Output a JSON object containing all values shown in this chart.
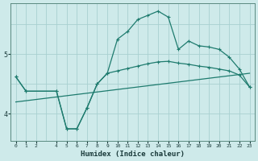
{
  "xlabel": "Humidex (Indice chaleur)",
  "bg_color": "#ceeaea",
  "grid_color": "#a8d0d0",
  "line_color": "#1e7b6e",
  "line1_x": [
    0,
    1,
    4,
    5,
    6,
    7,
    8,
    9,
    10,
    11,
    12,
    13,
    14,
    15,
    16,
    17,
    18,
    19,
    20,
    21,
    22,
    23
  ],
  "line1_y": [
    4.62,
    4.38,
    4.38,
    3.75,
    3.75,
    4.1,
    4.5,
    4.68,
    5.25,
    5.38,
    5.58,
    5.65,
    5.72,
    5.62,
    5.08,
    5.22,
    5.14,
    5.12,
    5.08,
    4.95,
    4.75,
    4.45
  ],
  "line2_x": [
    0,
    1,
    4,
    5,
    6,
    7,
    8,
    9,
    10,
    11,
    12,
    13,
    14,
    15,
    16,
    17,
    18,
    19,
    20,
    21,
    22,
    23
  ],
  "line2_y": [
    4.62,
    4.38,
    4.38,
    3.75,
    3.75,
    4.1,
    4.5,
    4.68,
    4.72,
    4.76,
    4.8,
    4.84,
    4.87,
    4.88,
    4.85,
    4.83,
    4.8,
    4.78,
    4.75,
    4.72,
    4.65,
    4.45
  ],
  "line3_x": [
    0,
    23
  ],
  "line3_y": [
    4.2,
    4.68
  ],
  "xlim": [
    -0.5,
    23.5
  ],
  "ylim": [
    3.55,
    5.85
  ],
  "yticks": [
    4,
    5
  ],
  "xticks": [
    0,
    1,
    2,
    4,
    5,
    6,
    7,
    8,
    9,
    10,
    11,
    12,
    13,
    14,
    15,
    16,
    17,
    18,
    19,
    20,
    21,
    22,
    23
  ]
}
